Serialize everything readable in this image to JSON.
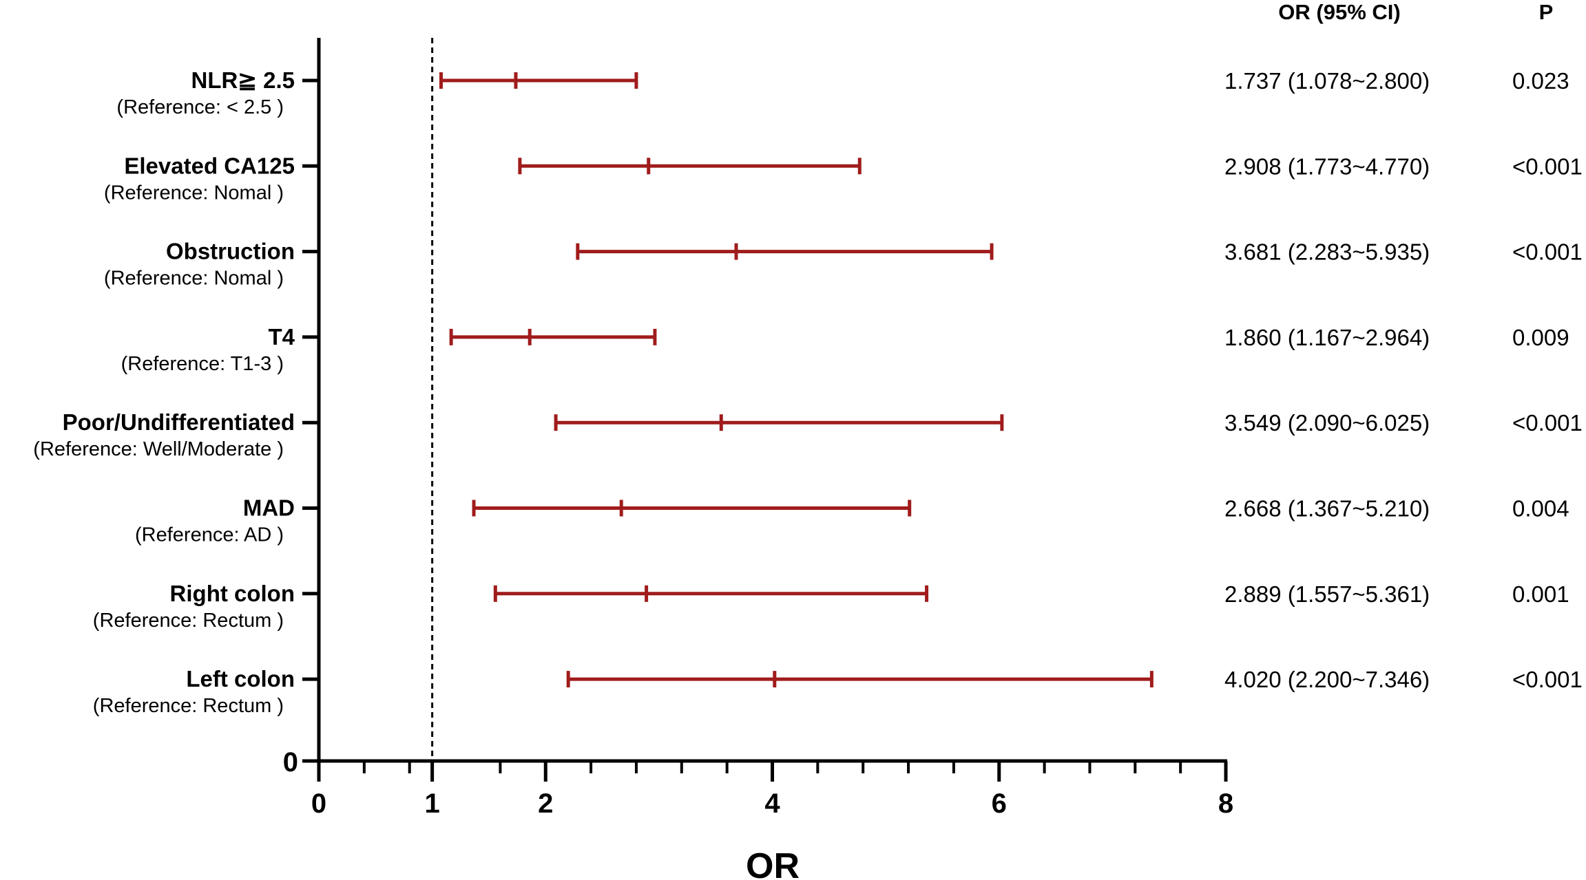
{
  "chart_data": {
    "type": "forest",
    "xlabel": "OR",
    "xlim": [
      0,
      8
    ],
    "x_major_ticks": [
      0,
      1,
      2,
      4,
      6,
      8
    ],
    "x_minor_ticks": [
      0.4,
      0.8,
      1.6,
      2.4,
      2.8,
      3.2,
      3.6,
      4.4,
      4.8,
      5.2,
      5.6,
      6.4,
      6.8,
      7.2,
      7.6
    ],
    "y_origin_label": "0",
    "reference_line_x": 1,
    "columns": {
      "or_header": "OR (95% CI)",
      "p_header": "P"
    },
    "colors": {
      "ci": "#a01c1c",
      "axis": "#000000"
    },
    "rows": [
      {
        "label": "NLR≧ 2.5",
        "reference": "(Reference: < 2.5 )",
        "or": 1.737,
        "lo": 1.078,
        "hi": 2.8,
        "or_text": "1.737 (1.078~2.800)",
        "p": "0.023"
      },
      {
        "label": "Elevated CA125",
        "reference": "(Reference: Nomal )",
        "or": 2.908,
        "lo": 1.773,
        "hi": 4.77,
        "or_text": "2.908 (1.773~4.770)",
        "p": "<0.001"
      },
      {
        "label": "Obstruction",
        "reference": "(Reference: Nomal )",
        "or": 3.681,
        "lo": 2.283,
        "hi": 5.935,
        "or_text": "3.681 (2.283~5.935)",
        "p": "<0.001"
      },
      {
        "label": "T4",
        "reference": "(Reference: T1-3 )",
        "or": 1.86,
        "lo": 1.167,
        "hi": 2.964,
        "or_text": "1.860 (1.167~2.964)",
        "p": "0.009"
      },
      {
        "label": "Poor/Undifferentiated",
        "reference": "(Reference: Well/Moderate )",
        "or": 3.549,
        "lo": 2.09,
        "hi": 6.025,
        "or_text": "3.549 (2.090~6.025)",
        "p": "<0.001"
      },
      {
        "label": "MAD",
        "reference": "(Reference: AD )",
        "or": 2.668,
        "lo": 1.367,
        "hi": 5.21,
        "or_text": "2.668 (1.367~5.210)",
        "p": "0.004"
      },
      {
        "label": "Right colon",
        "reference": "(Reference: Rectum )",
        "or": 2.889,
        "lo": 1.557,
        "hi": 5.361,
        "or_text": "2.889 (1.557~5.361)",
        "p": "0.001"
      },
      {
        "label": "Left colon",
        "reference": "(Reference: Rectum )",
        "or": 4.02,
        "lo": 2.2,
        "hi": 7.346,
        "or_text": "4.020 (2.200~7.346)",
        "p": "<0.001"
      }
    ]
  }
}
